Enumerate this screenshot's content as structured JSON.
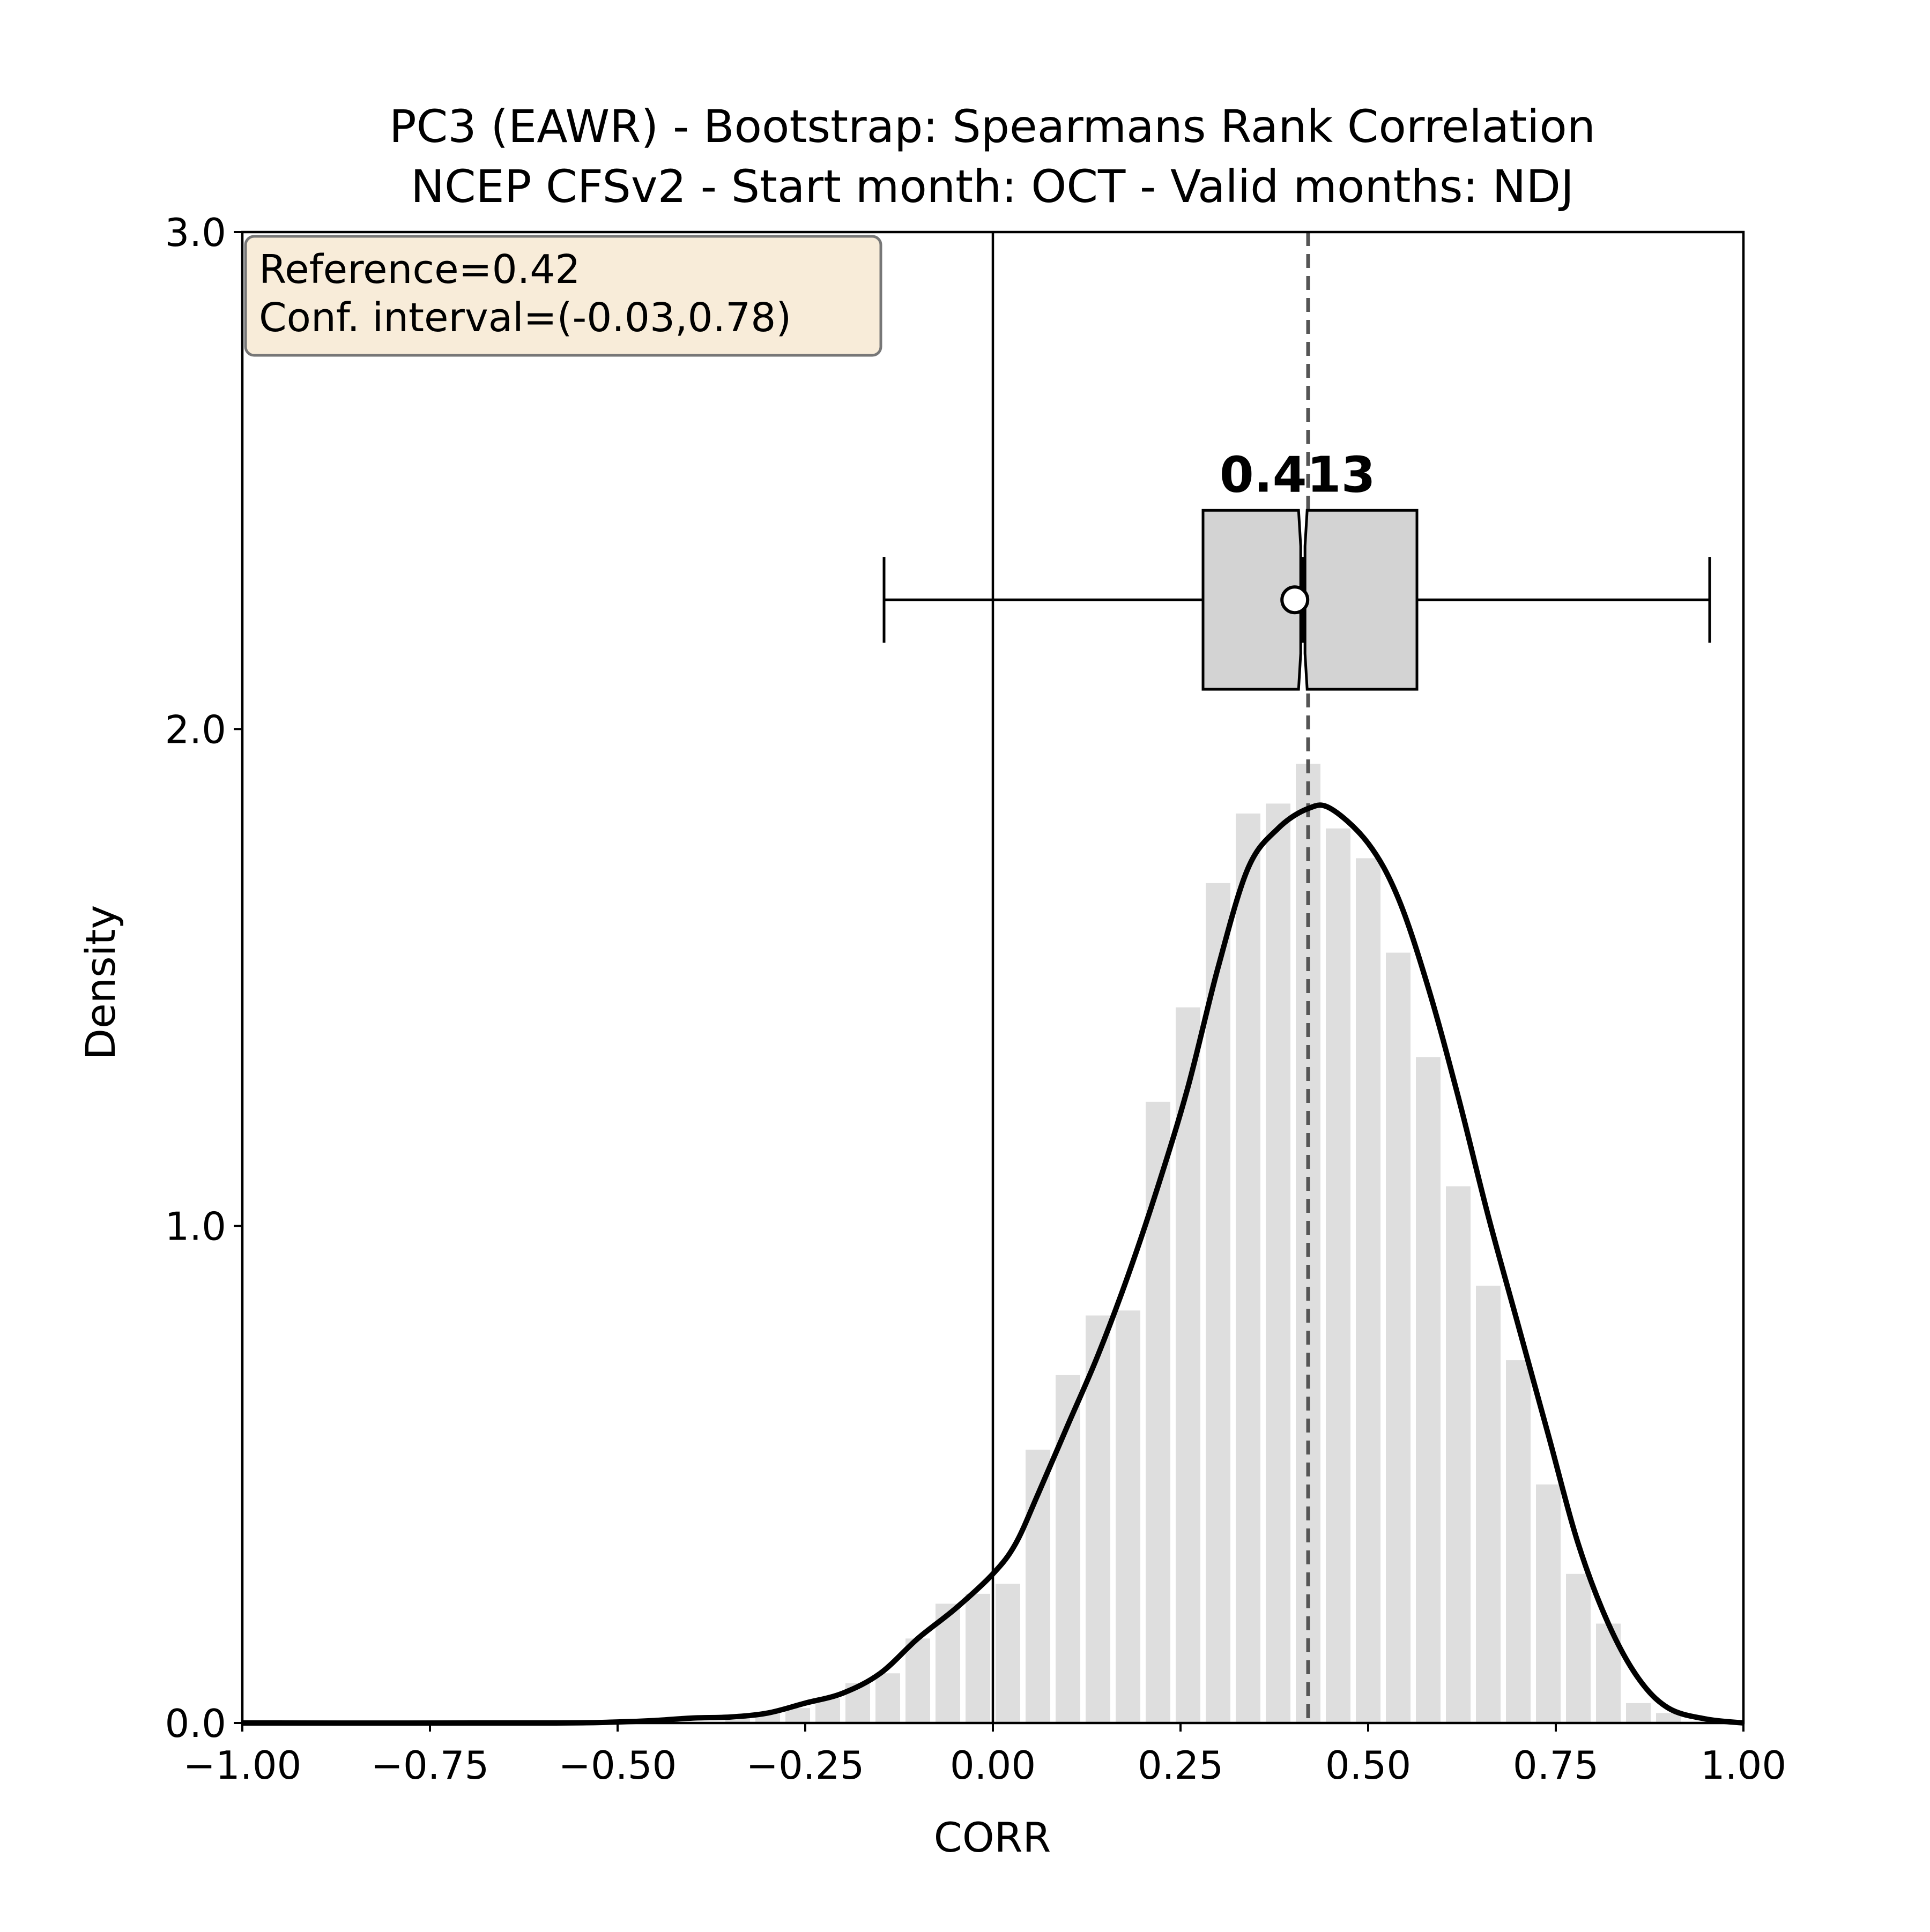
{
  "chart_data": {
    "type": "histogram-kde-boxplot",
    "title_line1": "PC3 (EAWR) - Bootstrap: Spearmans Rank Correlation",
    "title_line2": "NCEP CFSv2 - Start month: OCT - Valid months: NDJ",
    "xlabel": "CORR",
    "ylabel": "Density",
    "xlim": [
      -1.0,
      1.0
    ],
    "ylim": [
      0.0,
      3.0
    ],
    "xticks": [
      -1.0,
      -0.75,
      -0.5,
      -0.25,
      0.0,
      0.25,
      0.5,
      0.75,
      1.0
    ],
    "xtick_labels": [
      "−1.00",
      "−0.75",
      "−0.50",
      "−0.25",
      "0.00",
      "0.25",
      "0.50",
      "0.75",
      "1.00"
    ],
    "yticks": [
      0.0,
      1.0,
      2.0,
      3.0
    ],
    "ytick_labels": [
      "0.0",
      "1.0",
      "2.0",
      "3.0"
    ],
    "grid": false,
    "info_box": {
      "line1": "Reference=0.42",
      "line2": "Conf. interval=(-0.03,0.78)",
      "placement": "top-left",
      "background": "#f5e6cc"
    },
    "reference_value": 0.42,
    "zero_line": 0.0,
    "histogram": {
      "color": "#dedede",
      "bins": [
        {
          "x0": -0.36,
          "x1": -0.32,
          "density": 0.01
        },
        {
          "x0": -0.32,
          "x1": -0.28,
          "density": 0.02
        },
        {
          "x0": -0.28,
          "x1": -0.24,
          "density": 0.03
        },
        {
          "x0": -0.24,
          "x1": -0.2,
          "density": 0.05
        },
        {
          "x0": -0.2,
          "x1": -0.16,
          "density": 0.08
        },
        {
          "x0": -0.16,
          "x1": -0.12,
          "density": 0.1
        },
        {
          "x0": -0.12,
          "x1": -0.08,
          "density": 0.17
        },
        {
          "x0": -0.08,
          "x1": -0.04,
          "density": 0.24
        },
        {
          "x0": -0.04,
          "x1": 0.0,
          "density": 0.26
        },
        {
          "x0": 0.0,
          "x1": 0.04,
          "density": 0.28
        },
        {
          "x0": 0.04,
          "x1": 0.08,
          "density": 0.55
        },
        {
          "x0": 0.08,
          "x1": 0.12,
          "density": 0.7
        },
        {
          "x0": 0.12,
          "x1": 0.16,
          "density": 0.82
        },
        {
          "x0": 0.16,
          "x1": 0.2,
          "density": 0.83
        },
        {
          "x0": 0.2,
          "x1": 0.24,
          "density": 1.25
        },
        {
          "x0": 0.24,
          "x1": 0.28,
          "density": 1.44
        },
        {
          "x0": 0.28,
          "x1": 0.32,
          "density": 1.69
        },
        {
          "x0": 0.32,
          "x1": 0.36,
          "density": 1.83
        },
        {
          "x0": 0.36,
          "x1": 0.4,
          "density": 1.85
        },
        {
          "x0": 0.4,
          "x1": 0.44,
          "density": 1.93
        },
        {
          "x0": 0.44,
          "x1": 0.48,
          "density": 1.8
        },
        {
          "x0": 0.48,
          "x1": 0.52,
          "density": 1.74
        },
        {
          "x0": 0.52,
          "x1": 0.56,
          "density": 1.55
        },
        {
          "x0": 0.56,
          "x1": 0.6,
          "density": 1.34
        },
        {
          "x0": 0.6,
          "x1": 0.64,
          "density": 1.08
        },
        {
          "x0": 0.64,
          "x1": 0.68,
          "density": 0.88
        },
        {
          "x0": 0.68,
          "x1": 0.72,
          "density": 0.73
        },
        {
          "x0": 0.72,
          "x1": 0.76,
          "density": 0.48
        },
        {
          "x0": 0.76,
          "x1": 0.8,
          "density": 0.3
        },
        {
          "x0": 0.8,
          "x1": 0.84,
          "density": 0.2
        },
        {
          "x0": 0.84,
          "x1": 0.88,
          "density": 0.04
        },
        {
          "x0": 0.88,
          "x1": 0.92,
          "density": 0.02
        }
      ]
    },
    "kde": {
      "color": "#000000",
      "points": [
        [
          -1.0,
          0.0
        ],
        [
          -0.6,
          0.0
        ],
        [
          -0.5,
          0.002
        ],
        [
          -0.45,
          0.005
        ],
        [
          -0.4,
          0.01
        ],
        [
          -0.35,
          0.012
        ],
        [
          -0.3,
          0.02
        ],
        [
          -0.25,
          0.04
        ],
        [
          -0.2,
          0.06
        ],
        [
          -0.15,
          0.1
        ],
        [
          -0.1,
          0.17
        ],
        [
          -0.05,
          0.23
        ],
        [
          0.0,
          0.3
        ],
        [
          0.03,
          0.36
        ],
        [
          0.06,
          0.46
        ],
        [
          0.1,
          0.6
        ],
        [
          0.14,
          0.74
        ],
        [
          0.18,
          0.9
        ],
        [
          0.22,
          1.08
        ],
        [
          0.26,
          1.28
        ],
        [
          0.3,
          1.52
        ],
        [
          0.34,
          1.72
        ],
        [
          0.38,
          1.8
        ],
        [
          0.42,
          1.84
        ],
        [
          0.45,
          1.84
        ],
        [
          0.5,
          1.77
        ],
        [
          0.54,
          1.66
        ],
        [
          0.58,
          1.48
        ],
        [
          0.62,
          1.26
        ],
        [
          0.66,
          1.02
        ],
        [
          0.7,
          0.8
        ],
        [
          0.74,
          0.58
        ],
        [
          0.78,
          0.36
        ],
        [
          0.82,
          0.2
        ],
        [
          0.86,
          0.09
        ],
        [
          0.9,
          0.03
        ],
        [
          0.95,
          0.008
        ],
        [
          1.0,
          0.0
        ]
      ]
    },
    "boxplot": {
      "y_center": 2.26,
      "box_bottom": 2.08,
      "box_top": 2.44,
      "whisker_low": -0.145,
      "q1": 0.28,
      "median": 0.413,
      "mean": 0.413,
      "q3": 0.565,
      "whisker_high": 0.955,
      "median_label": "0.413",
      "box_color": "#d3d3d3"
    }
  }
}
